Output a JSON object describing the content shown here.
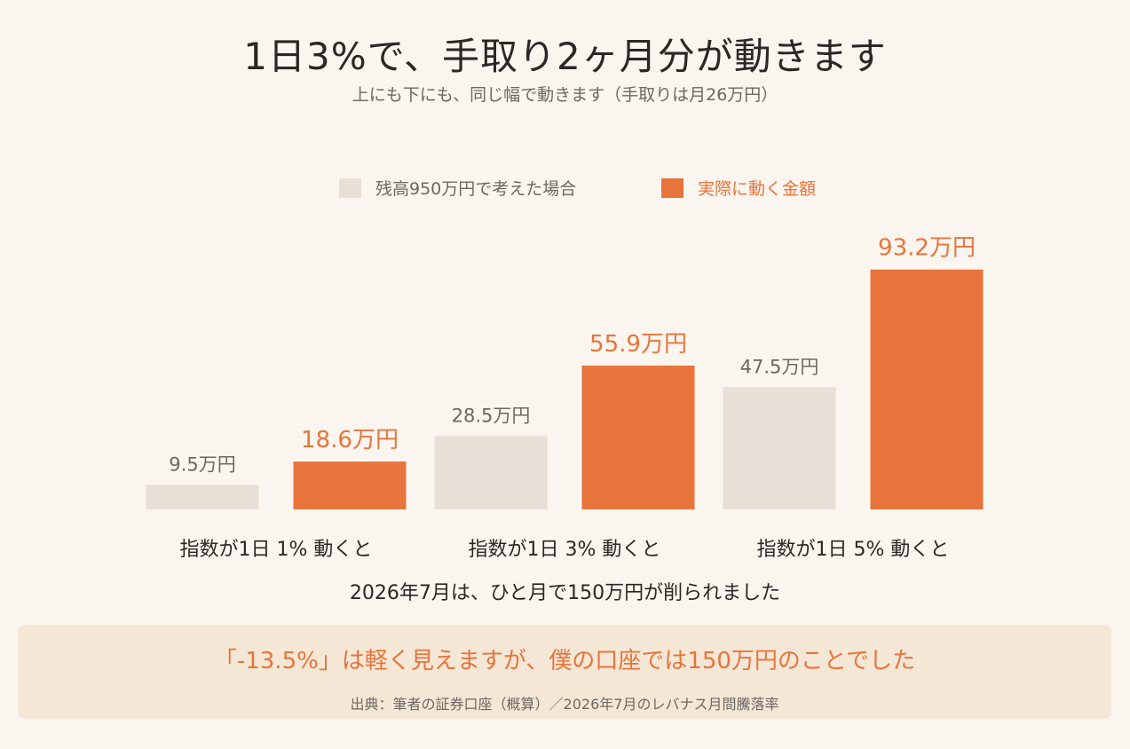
{
  "title": "1日3%で、手取り2ヶ月分が動きます",
  "subtitle": "上にも下にも、同じ幅で動きます（手取りは月26万円）",
  "colors": {
    "base": "#e8e0d6",
    "actual": "#e8743b",
    "text": "#2b2724",
    "muted": "#6d6762"
  },
  "chart_data": {
    "type": "bar",
    "categories": [
      "指数が1日 1% 動くと",
      "指数が1日 3% 動くと",
      "指数が1日 5% 動くと"
    ],
    "series": [
      {
        "name": "残高950万円で考えた場合",
        "values": [
          9.5,
          28.5,
          47.5
        ],
        "labels": [
          "9.5万円",
          "28.5万円",
          "47.5万円"
        ]
      },
      {
        "name": "実際に動く金額",
        "values": [
          18.6,
          55.9,
          93.2
        ],
        "labels": [
          "18.6万円",
          "55.9万円",
          "93.2万円"
        ]
      }
    ],
    "ylim": [
      0,
      100
    ],
    "grid": false,
    "legend": "top-center"
  },
  "note": "2026年7月は、ひと月で150万円が削られました",
  "callout": {
    "main": "「-13.5%」は軽く見えますが、僕の口座では150万円のことでした",
    "source": "出典：筆者の証券口座（概算）／2026年7月のレバナス月間騰落率"
  }
}
